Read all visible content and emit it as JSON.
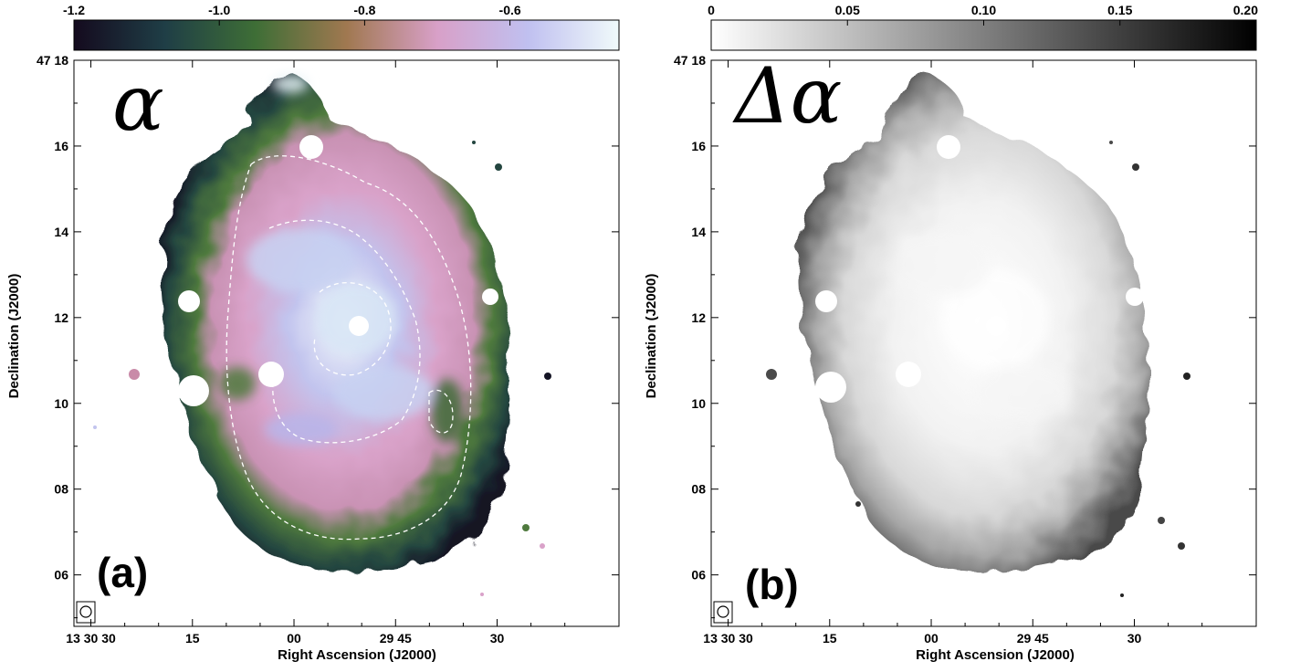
{
  "chart_data": [
    {
      "type": "heatmap",
      "panel_label": "(a)",
      "symbol": "α",
      "colorbar": {
        "ticks": [
          "-1.2",
          "-1.0",
          "-0.8",
          "-0.6"
        ],
        "range": [
          -1.2,
          -0.45
        ],
        "colors": [
          "#140a1e",
          "#1f3e46",
          "#3e6e36",
          "#a07850",
          "#d8a0c8",
          "#c0c0f0",
          "#f0fafa"
        ]
      },
      "xlabel": "Right Ascension (J2000)",
      "ylabel": "Declination (J2000)",
      "xticks": [
        "13 30 30",
        "15",
        "00",
        "29 45",
        "30"
      ],
      "yticks": [
        "47 18",
        "16",
        "14",
        "12",
        "10",
        "08",
        "06"
      ],
      "ylim_arcmin": [
        4.8,
        18
      ],
      "contours": "white dashed",
      "beam_marker": true
    },
    {
      "type": "heatmap",
      "panel_label": "(b)",
      "symbol": "Δα",
      "colorbar": {
        "ticks": [
          "0",
          "0.05",
          "0.10",
          "0.15",
          "0.20"
        ],
        "range": [
          0,
          0.2
        ],
        "colors": [
          "#ffffff",
          "#000000"
        ]
      },
      "xlabel": "Right Ascension (J2000)",
      "ylabel": "Declination (J2000)",
      "xticks": [
        "13 30 30",
        "15",
        "00",
        "29 45",
        "30"
      ],
      "yticks": [
        "47 18",
        "16",
        "14",
        "12",
        "10",
        "08",
        "06"
      ],
      "ylim_arcmin": [
        4.8,
        18
      ],
      "beam_marker": true
    }
  ]
}
